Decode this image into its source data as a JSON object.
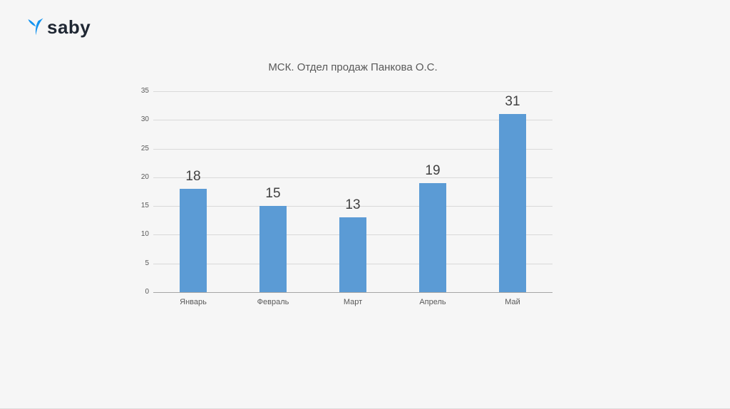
{
  "logo": {
    "text": "saby",
    "icon": "saby-bird-icon",
    "text_color": "#1f2733",
    "icon_color": "#1494f0"
  },
  "chart_data": {
    "type": "bar",
    "title": "МСК. Отдел продаж Панкова О.С.",
    "categories": [
      "Январь",
      "Февраль",
      "Март",
      "Апрель",
      "Май"
    ],
    "values": [
      18,
      15,
      13,
      19,
      31
    ],
    "ylabel": "",
    "xlabel": "",
    "ylim": [
      0,
      35
    ],
    "ytick_step": 5,
    "bar_color": "#5B9BD5",
    "value_label_color": "#404040",
    "grid": true,
    "legend": "none"
  }
}
